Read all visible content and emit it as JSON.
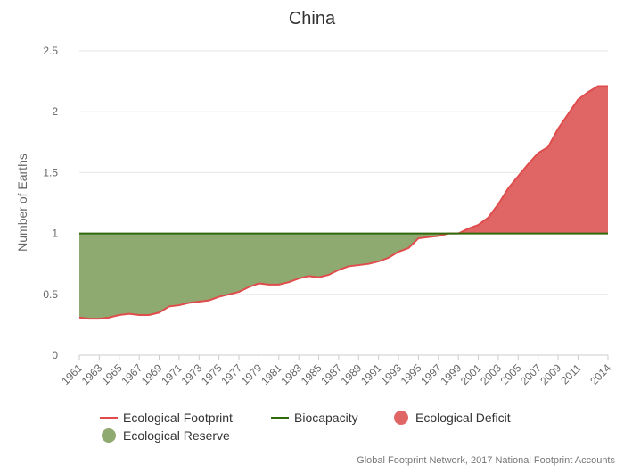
{
  "chart_data": {
    "type": "area",
    "title": "China",
    "ylabel": "Number of Earths",
    "ylim": [
      0,
      2.5
    ],
    "yticks": [
      "0",
      "0.5",
      "1",
      "1.5",
      "2",
      "2.5"
    ],
    "xtick_labels": [
      "1961",
      "1963",
      "1965",
      "1967",
      "1969",
      "1971",
      "1973",
      "1975",
      "1977",
      "1979",
      "1981",
      "1983",
      "1985",
      "1987",
      "1989",
      "1991",
      "1993",
      "1995",
      "1997",
      "1999",
      "2001",
      "2003",
      "2005",
      "2007",
      "2009",
      "2011",
      "2014"
    ],
    "x": [
      1961,
      1962,
      1963,
      1964,
      1965,
      1966,
      1967,
      1968,
      1969,
      1970,
      1971,
      1972,
      1973,
      1974,
      1975,
      1976,
      1977,
      1978,
      1979,
      1980,
      1981,
      1982,
      1983,
      1984,
      1985,
      1986,
      1987,
      1988,
      1989,
      1990,
      1991,
      1992,
      1993,
      1994,
      1995,
      1996,
      1997,
      1998,
      1999,
      2000,
      2001,
      2002,
      2003,
      2004,
      2005,
      2006,
      2007,
      2008,
      2009,
      2010,
      2011,
      2012,
      2013,
      2014
    ],
    "series": [
      {
        "name": "Ecological Footprint",
        "color": "#e04c4c",
        "values": [
          0.31,
          0.3,
          0.3,
          0.31,
          0.33,
          0.34,
          0.33,
          0.33,
          0.35,
          0.4,
          0.41,
          0.43,
          0.44,
          0.45,
          0.48,
          0.5,
          0.52,
          0.56,
          0.59,
          0.58,
          0.58,
          0.6,
          0.63,
          0.65,
          0.64,
          0.66,
          0.7,
          0.73,
          0.74,
          0.75,
          0.77,
          0.8,
          0.85,
          0.88,
          0.96,
          0.97,
          0.98,
          1.0,
          1.0,
          1.04,
          1.07,
          1.13,
          1.24,
          1.37,
          1.47,
          1.57,
          1.66,
          1.71,
          1.86,
          1.98,
          2.1,
          2.16,
          2.21,
          2.21
        ]
      },
      {
        "name": "Biocapacity",
        "color": "#2f6a0b",
        "values": [
          1,
          1,
          1,
          1,
          1,
          1,
          1,
          1,
          1,
          1,
          1,
          1,
          1,
          1,
          1,
          1,
          1,
          1,
          1,
          1,
          1,
          1,
          1,
          1,
          1,
          1,
          1,
          1,
          1,
          1,
          1,
          1,
          1,
          1,
          1,
          1,
          1,
          1,
          1,
          1,
          1,
          1,
          1,
          1,
          1,
          1,
          1,
          1,
          1,
          1,
          1,
          1,
          1,
          1
        ]
      }
    ],
    "areas": [
      {
        "name": "Ecological Deficit",
        "color": "#e06666"
      },
      {
        "name": "Ecological Reserve",
        "color": "#8faa70"
      }
    ],
    "legend_position": "bottom",
    "source": "Global Footprint Network, 2017 National Footprint Accounts"
  }
}
